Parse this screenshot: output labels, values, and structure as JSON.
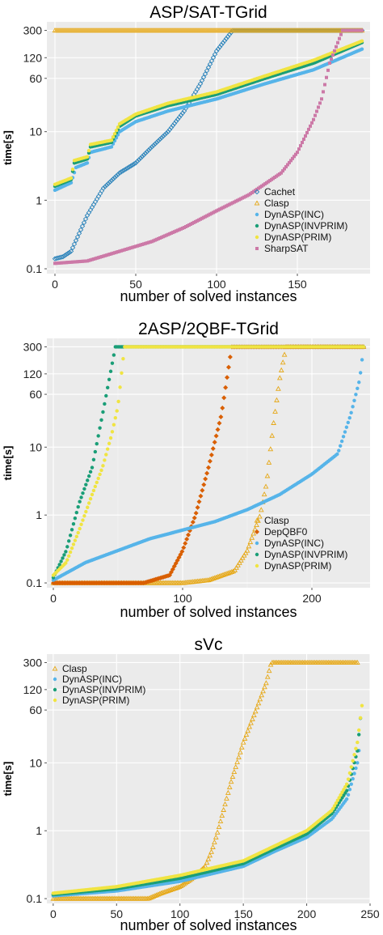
{
  "chart_data": [
    {
      "type": "scatter",
      "title": "ASP/SAT-TGrid",
      "xlabel": "number of solved instances",
      "ylabel": "time[s]",
      "y_scale": "log",
      "xlim": [
        -5,
        195
      ],
      "ylim": [
        0.085,
        400
      ],
      "xticks": [
        0,
        50,
        100,
        150
      ],
      "yticks": [
        0.1,
        1,
        10,
        60,
        120,
        300
      ],
      "ytick_labels": [
        "0.1",
        "1",
        "10",
        "60",
        "120",
        "300"
      ],
      "grid": true,
      "legend_position": "bottom-right",
      "series": [
        {
          "name": "Cachet",
          "color": "#2b83ba",
          "marker": "diamond-open",
          "keypoints": [
            [
              0,
              0.14
            ],
            [
              5,
              0.15
            ],
            [
              10,
              0.18
            ],
            [
              20,
              0.6
            ],
            [
              30,
              1.5
            ],
            [
              40,
              2.5
            ],
            [
              50,
              3.5
            ],
            [
              60,
              6
            ],
            [
              70,
              10
            ],
            [
              80,
              20
            ],
            [
              90,
              50
            ],
            [
              100,
              150
            ],
            [
              110,
              300
            ],
            [
              190,
              300
            ]
          ]
        },
        {
          "name": "Clasp",
          "color": "#e6a817",
          "marker": "triangle-open",
          "keypoints": [
            [
              0,
              300
            ],
            [
              190,
              300
            ]
          ]
        },
        {
          "name": "DynASP(INC)",
          "color": "#56b4e9",
          "marker": "circle",
          "keypoints": [
            [
              0,
              1.4
            ],
            [
              10,
              1.8
            ],
            [
              13,
              3
            ],
            [
              20,
              3.5
            ],
            [
              22,
              5
            ],
            [
              35,
              6
            ],
            [
              40,
              10
            ],
            [
              50,
              14
            ],
            [
              70,
              20
            ],
            [
              100,
              30
            ],
            [
              130,
              50
            ],
            [
              160,
              80
            ],
            [
              190,
              160
            ]
          ]
        },
        {
          "name": "DynASP(INVPRIM)",
          "color": "#1a9e77",
          "marker": "circle",
          "keypoints": [
            [
              0,
              1.6
            ],
            [
              10,
              2
            ],
            [
              12,
              3.5
            ],
            [
              20,
              4
            ],
            [
              22,
              6
            ],
            [
              35,
              7
            ],
            [
              40,
              12
            ],
            [
              50,
              17
            ],
            [
              70,
              24
            ],
            [
              100,
              35
            ],
            [
              130,
              60
            ],
            [
              160,
              100
            ],
            [
              190,
              200
            ]
          ]
        },
        {
          "name": "DynASP(PRIM)",
          "color": "#f0e442",
          "marker": "circle",
          "keypoints": [
            [
              0,
              1.7
            ],
            [
              10,
              2.1
            ],
            [
              12,
              3.8
            ],
            [
              20,
              4.3
            ],
            [
              22,
              6.5
            ],
            [
              35,
              7.5
            ],
            [
              40,
              13
            ],
            [
              50,
              18
            ],
            [
              70,
              26
            ],
            [
              100,
              38
            ],
            [
              130,
              65
            ],
            [
              160,
              110
            ],
            [
              190,
              210
            ]
          ]
        },
        {
          "name": "SharpSAT",
          "color": "#cc79a7",
          "marker": "square",
          "keypoints": [
            [
              0,
              0.12
            ],
            [
              20,
              0.13
            ],
            [
              40,
              0.18
            ],
            [
              60,
              0.25
            ],
            [
              80,
              0.4
            ],
            [
              100,
              0.7
            ],
            [
              120,
              1.2
            ],
            [
              140,
              2.5
            ],
            [
              150,
              5
            ],
            [
              160,
              15
            ],
            [
              165,
              30
            ],
            [
              170,
              100
            ],
            [
              178,
              300
            ],
            [
              190,
              300
            ]
          ]
        }
      ]
    },
    {
      "type": "scatter",
      "title": "2ASP/2QBF-TGrid",
      "xlabel": "number of solved instances",
      "ylabel": "time[s]",
      "y_scale": "log",
      "xlim": [
        -5,
        245
      ],
      "ylim": [
        0.085,
        400
      ],
      "xticks": [
        0,
        100,
        200
      ],
      "xticks_minor": [
        50,
        150
      ],
      "yticks": [
        0.1,
        1,
        10,
        60,
        120,
        300
      ],
      "ytick_labels": [
        "0.1",
        "1",
        "10",
        "60",
        "120",
        "300"
      ],
      "grid": true,
      "legend_position": "bottom-right",
      "series": [
        {
          "name": "Clasp",
          "color": "#e6a817",
          "marker": "triangle-open",
          "keypoints": [
            [
              0,
              0.1
            ],
            [
              100,
              0.1
            ],
            [
              120,
              0.11
            ],
            [
              140,
              0.15
            ],
            [
              150,
              0.3
            ],
            [
              160,
              1
            ],
            [
              165,
              3
            ],
            [
              170,
              20
            ],
            [
              175,
              100
            ],
            [
              180,
              300
            ],
            [
              240,
              300
            ]
          ]
        },
        {
          "name": "DepQBF0",
          "color": "#d95f02",
          "marker": "diamond",
          "keypoints": [
            [
              0,
              0.1
            ],
            [
              70,
              0.1
            ],
            [
              90,
              0.13
            ],
            [
              100,
              0.3
            ],
            [
              110,
              1
            ],
            [
              120,
              5
            ],
            [
              130,
              30
            ],
            [
              138,
              300
            ],
            [
              240,
              300
            ]
          ]
        },
        {
          "name": "DynASP(INC)",
          "color": "#56b4e9",
          "marker": "circle",
          "keypoints": [
            [
              0,
              0.11
            ],
            [
              25,
              0.2
            ],
            [
              50,
              0.3
            ],
            [
              75,
              0.45
            ],
            [
              100,
              0.6
            ],
            [
              125,
              0.8
            ],
            [
              150,
              1.2
            ],
            [
              175,
              2
            ],
            [
              200,
              4
            ],
            [
              220,
              8
            ],
            [
              230,
              30
            ],
            [
              237,
              100
            ],
            [
              240,
              300
            ]
          ]
        },
        {
          "name": "DynASP(INVPRIM)",
          "color": "#1a9e77",
          "marker": "circle",
          "keypoints": [
            [
              0,
              0.12
            ],
            [
              10,
              0.3
            ],
            [
              20,
              1.5
            ],
            [
              30,
              5
            ],
            [
              38,
              30
            ],
            [
              45,
              150
            ],
            [
              48,
              300
            ],
            [
              240,
              300
            ]
          ]
        },
        {
          "name": "DynASP(PRIM)",
          "color": "#f0e442",
          "marker": "circle",
          "keypoints": [
            [
              0,
              0.13
            ],
            [
              10,
              0.2
            ],
            [
              20,
              0.6
            ],
            [
              30,
              2
            ],
            [
              38,
              5
            ],
            [
              45,
              15
            ],
            [
              50,
              40
            ],
            [
              55,
              300
            ],
            [
              240,
              300
            ]
          ]
        }
      ]
    },
    {
      "type": "scatter",
      "title": "sVc",
      "xlabel": "number of solved instances",
      "ylabel": "time[s]",
      "y_scale": "log",
      "xlim": [
        -5,
        250
      ],
      "ylim": [
        0.085,
        400
      ],
      "xticks": [
        0,
        50,
        100,
        150,
        200,
        250
      ],
      "yticks": [
        0.1,
        1,
        10,
        60,
        120,
        300
      ],
      "ytick_labels": [
        "0.1",
        "1",
        "10",
        "60",
        "120",
        "300"
      ],
      "grid": true,
      "legend_position": "top-left",
      "series": [
        {
          "name": "Clasp",
          "color": "#e6a817",
          "marker": "triangle-open",
          "keypoints": [
            [
              0,
              0.1
            ],
            [
              75,
              0.1
            ],
            [
              85,
              0.12
            ],
            [
              100,
              0.15
            ],
            [
              110,
              0.2
            ],
            [
              120,
              0.3
            ],
            [
              125,
              0.5
            ],
            [
              130,
              1
            ],
            [
              140,
              5
            ],
            [
              150,
              20
            ],
            [
              160,
              60
            ],
            [
              168,
              150
            ],
            [
              172,
              300
            ],
            [
              240,
              300
            ]
          ]
        },
        {
          "name": "DynASP(INC)",
          "color": "#56b4e9",
          "marker": "circle",
          "keypoints": [
            [
              0,
              0.11
            ],
            [
              50,
              0.13
            ],
            [
              100,
              0.18
            ],
            [
              150,
              0.3
            ],
            [
              175,
              0.5
            ],
            [
              200,
              0.8
            ],
            [
              220,
              1.5
            ],
            [
              232,
              3
            ],
            [
              240,
              10
            ],
            [
              242,
              20
            ]
          ]
        },
        {
          "name": "DynASP(INVPRIM)",
          "color": "#1a9e77",
          "marker": "circle",
          "keypoints": [
            [
              0,
              0.115
            ],
            [
              50,
              0.14
            ],
            [
              100,
              0.2
            ],
            [
              150,
              0.33
            ],
            [
              175,
              0.55
            ],
            [
              200,
              0.9
            ],
            [
              220,
              1.8
            ],
            [
              232,
              4
            ],
            [
              240,
              15
            ],
            [
              243,
              60
            ]
          ]
        },
        {
          "name": "DynASP(PRIM)",
          "color": "#f0e442",
          "marker": "circle",
          "keypoints": [
            [
              0,
              0.12
            ],
            [
              50,
              0.15
            ],
            [
              100,
              0.22
            ],
            [
              150,
              0.36
            ],
            [
              175,
              0.6
            ],
            [
              200,
              1
            ],
            [
              220,
              2
            ],
            [
              232,
              5
            ],
            [
              240,
              20
            ],
            [
              244,
              80
            ]
          ]
        }
      ]
    }
  ]
}
